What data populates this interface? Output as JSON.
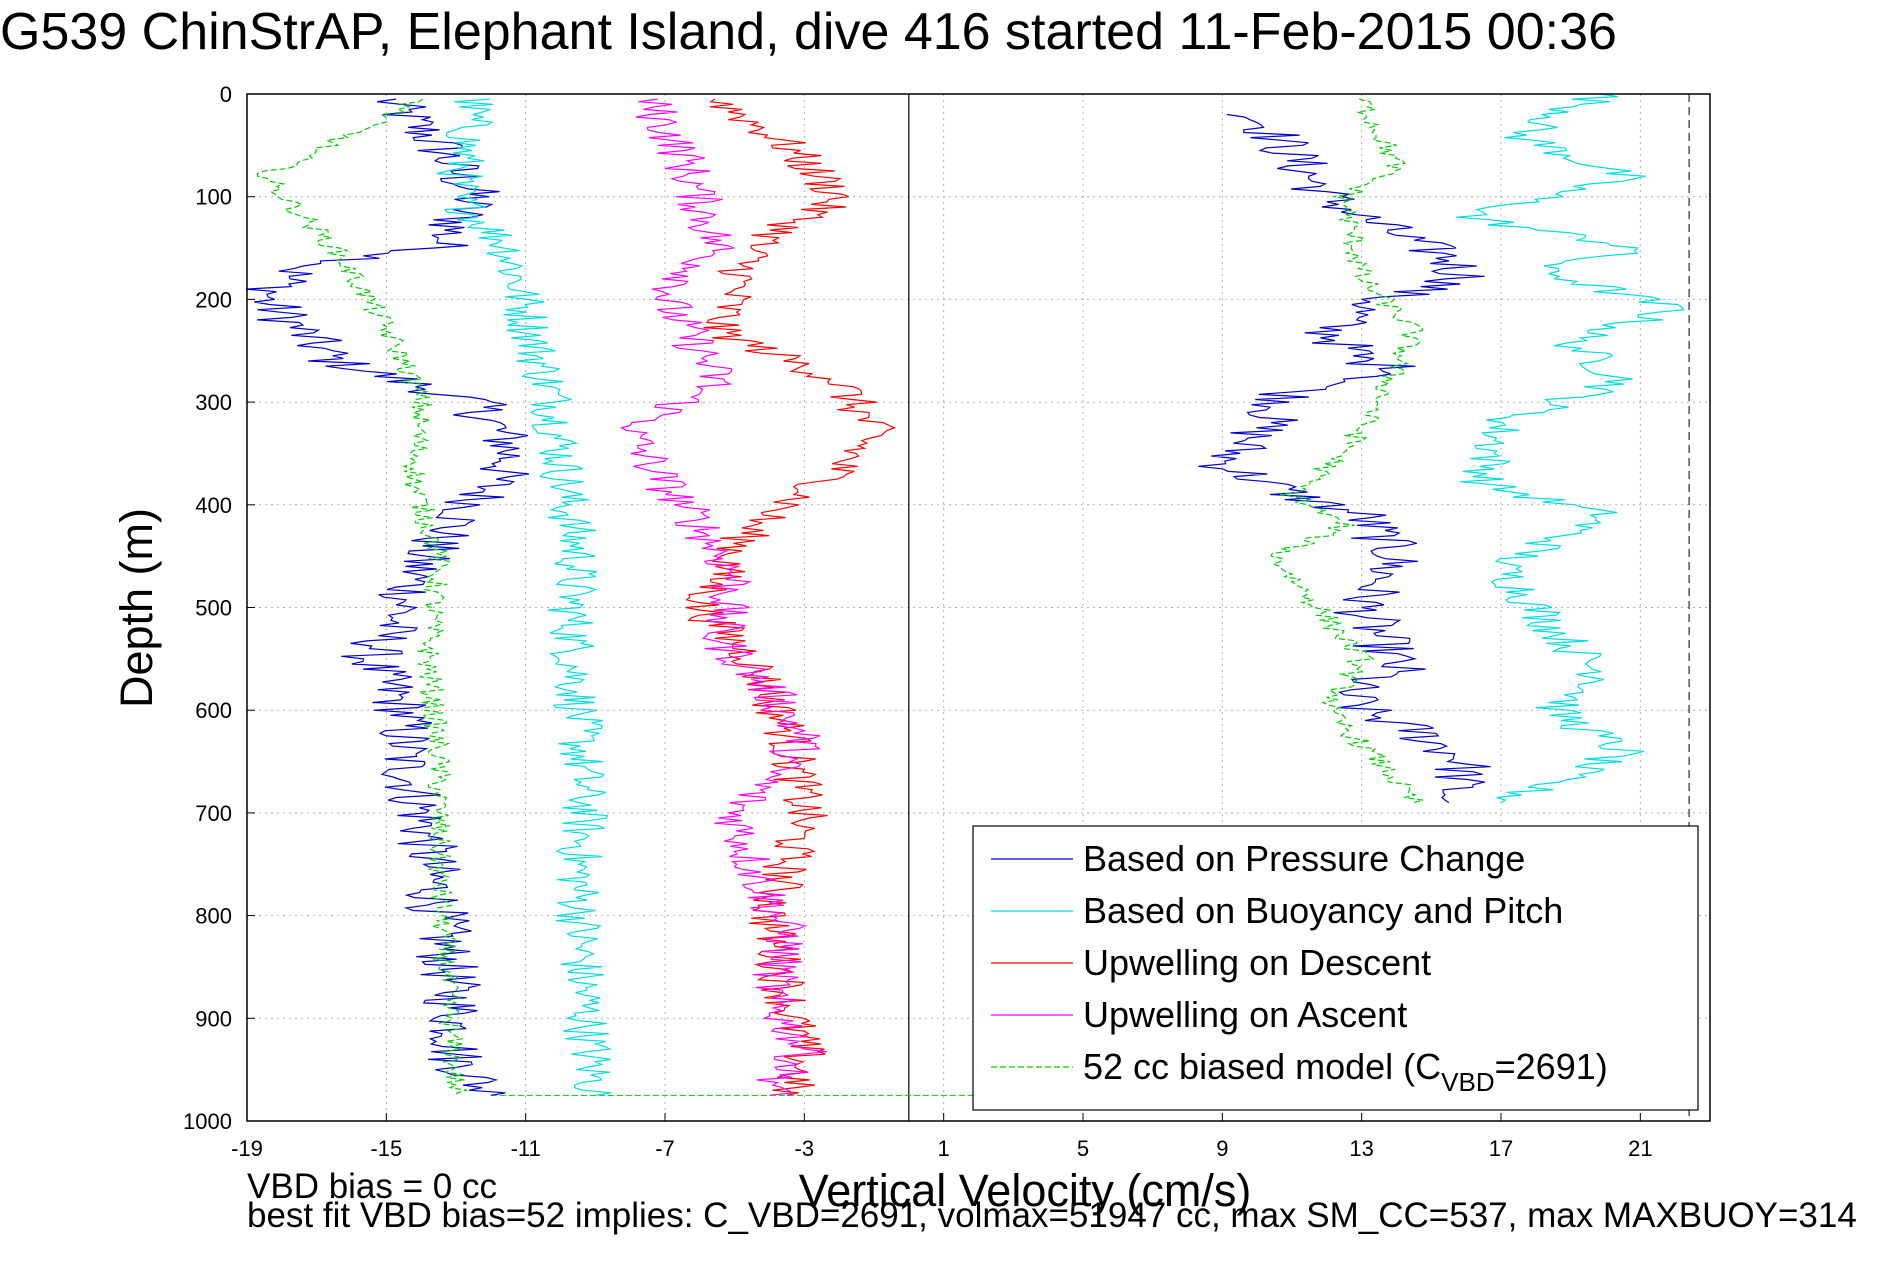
{
  "title": "G539 ChinStrAP, Elephant Island, dive 416 started 11-Feb-2015 00:36",
  "notes": {
    "line1": "VBD bias = 0 cc",
    "line2": "best fit VBD bias=52 implies: C_VBD=2691, volmax=51947 cc, max SM_CC=537, max MAXBUOY=314"
  },
  "chart_data": {
    "type": "line",
    "title": "G539 ChinStrAP, Elephant Island, dive 416 started 11-Feb-2015 00:36",
    "xlabel": "Vertical Velocity (cm/s)",
    "ylabel": "Depth (m)",
    "xlim": [
      -19,
      23
    ],
    "ylim": [
      1000,
      0
    ],
    "y_reversed": true,
    "grid": true,
    "xticks": [
      -19,
      -15,
      -11,
      -7,
      -3,
      1,
      5,
      9,
      13,
      17,
      21
    ],
    "yticks": [
      0,
      100,
      200,
      300,
      400,
      500,
      600,
      700,
      800,
      900,
      1000
    ],
    "legend_position": "bottom-right",
    "zero_line": 0,
    "dive_max_depth": 975,
    "series": [
      {
        "name": "Based on Pressure Change",
        "color": "#0000cc",
        "style": "solid",
        "segments": [
          {
            "x": [
              -15.0,
              -13.5,
              -12.5,
              -13.5,
              -17.5,
              -18.5,
              -17.5,
              -16.5,
              -14.5,
              -12.5,
              -11.5,
              -11.5,
              -12.5,
              -14.0,
              -14.5,
              -15.5,
              -14.5,
              -14.5,
              -14.0,
              -13.5,
              -13.0,
              -13.0,
              -12.0
            ],
            "y": [
              5,
              50,
              100,
              150,
              170,
              200,
              230,
              260,
              280,
              300,
              340,
              360,
              400,
              450,
              500,
              550,
              600,
              650,
              700,
              800,
              900,
              940,
              975
            ]
          },
          {
            "x": [
              10.0,
              11.0,
              12.0,
              13.0,
              15.5,
              16.0,
              13.5,
              12.0,
              13.0,
              14.5,
              11.0,
              10.0,
              9.0,
              11.0,
              13.0,
              14.0,
              13.0,
              14.0,
              12.5,
              13.0,
              14.5,
              16.0,
              15.5
            ],
            "y": [
              20,
              60,
              100,
              120,
              160,
              180,
              200,
              230,
              260,
              270,
              290,
              330,
              360,
              390,
              410,
              450,
              500,
              560,
              580,
              600,
              620,
              650,
              690
            ]
          }
        ]
      },
      {
        "name": "Based on Buoyancy and Pitch",
        "color": "#00dddd",
        "style": "solid",
        "segments": [
          {
            "x": [
              -12.5,
              -13.0,
              -11.5,
              -10.7,
              -10.2,
              -10.0,
              -9.8,
              -9.5,
              -9.7,
              -9.5,
              -9.3,
              -9.5,
              -9.4,
              -9.2,
              -9.0
            ],
            "y": [
              5,
              100,
              150,
              250,
              300,
              350,
              400,
              450,
              500,
              600,
              700,
              750,
              850,
              920,
              975
            ]
          },
          {
            "x": [
              20.0,
              17.5,
              20.5,
              16.0,
              21.0,
              18.0,
              22.0,
              19.0,
              20.5,
              17.0,
              16.5,
              20.0,
              17.0,
              18.5,
              20.0,
              18.5,
              20.5,
              17.0
            ],
            "y": [
              0,
              40,
              80,
              120,
              150,
              170,
              210,
              240,
              280,
              320,
              380,
              410,
              460,
              520,
              570,
              600,
              640,
              690
            ]
          }
        ]
      },
      {
        "name": "Upwelling on Descent",
        "color": "#ff0000",
        "style": "solid",
        "segments": [
          {
            "x": [
              -5.5,
              -3.5,
              -2.0,
              -4.5,
              -5.5,
              -2.0,
              -1.0,
              -2.5,
              -4.5,
              -6.0,
              -4.5,
              -3.5,
              -3.0,
              -4.0,
              -3.5,
              -3.0,
              -3.5
            ],
            "y": [
              5,
              50,
              100,
              150,
              230,
              280,
              330,
              380,
              420,
              500,
              550,
              620,
              700,
              800,
              880,
              940,
              975
            ]
          }
        ]
      },
      {
        "name": "Upwelling on Ascent",
        "color": "#ff00ff",
        "style": "solid",
        "segments": [
          {
            "x": [
              -7.5,
              -6.5,
              -5.5,
              -7.0,
              -6.0,
              -5.5,
              -8.0,
              -7.0,
              -6.0,
              -5.0,
              -5.5,
              -4.0,
              -3.0,
              -5.0,
              -4.5,
              -3.5,
              -4.0,
              -3.0,
              -4.0
            ],
            "y": [
              5,
              60,
              150,
              200,
              250,
              280,
              330,
              380,
              420,
              470,
              530,
              580,
              630,
              700,
              750,
              820,
              880,
              930,
              975
            ]
          }
        ]
      },
      {
        "name": "52 cc biased model (C_VBD=2691)",
        "color": "#00cc00",
        "style": "dashed",
        "segments": [
          {
            "x": [
              -14.0,
              -18.5,
              -16.5,
              -15.5,
              -14.5,
              -14.0,
              -14.2,
              -13.5,
              -13.8,
              -13.5,
              -13.5,
              -13.3,
              -13.0
            ],
            "y": [
              5,
              80,
              150,
              200,
              260,
              300,
              380,
              450,
              550,
              650,
              750,
              850,
              975
            ]
          },
          {
            "x": [
              13.0,
              14.0,
              12.5,
              13.0,
              14.5,
              13.5,
              12.5,
              11.0,
              12.5,
              10.5,
              13.0,
              12.0,
              13.5,
              14.5
            ],
            "y": [
              5,
              70,
              100,
              180,
              230,
              300,
              350,
              390,
              420,
              450,
              550,
              600,
              650,
              690
            ]
          }
        ]
      }
    ],
    "legend": [
      {
        "label": "Based on Pressure Change",
        "color": "#0000cc",
        "style": "solid"
      },
      {
        "label": "Based on Buoyancy and Pitch",
        "color": "#00dddd",
        "style": "solid"
      },
      {
        "label": "Upwelling on Descent",
        "color": "#ff0000",
        "style": "solid"
      },
      {
        "label": "Upwelling on Ascent",
        "color": "#ff00ff",
        "style": "solid"
      },
      {
        "label": "52 cc biased model (C",
        "sub": "VBD",
        "tail": "=2691)",
        "color": "#00cc00",
        "style": "dashed"
      }
    ]
  }
}
